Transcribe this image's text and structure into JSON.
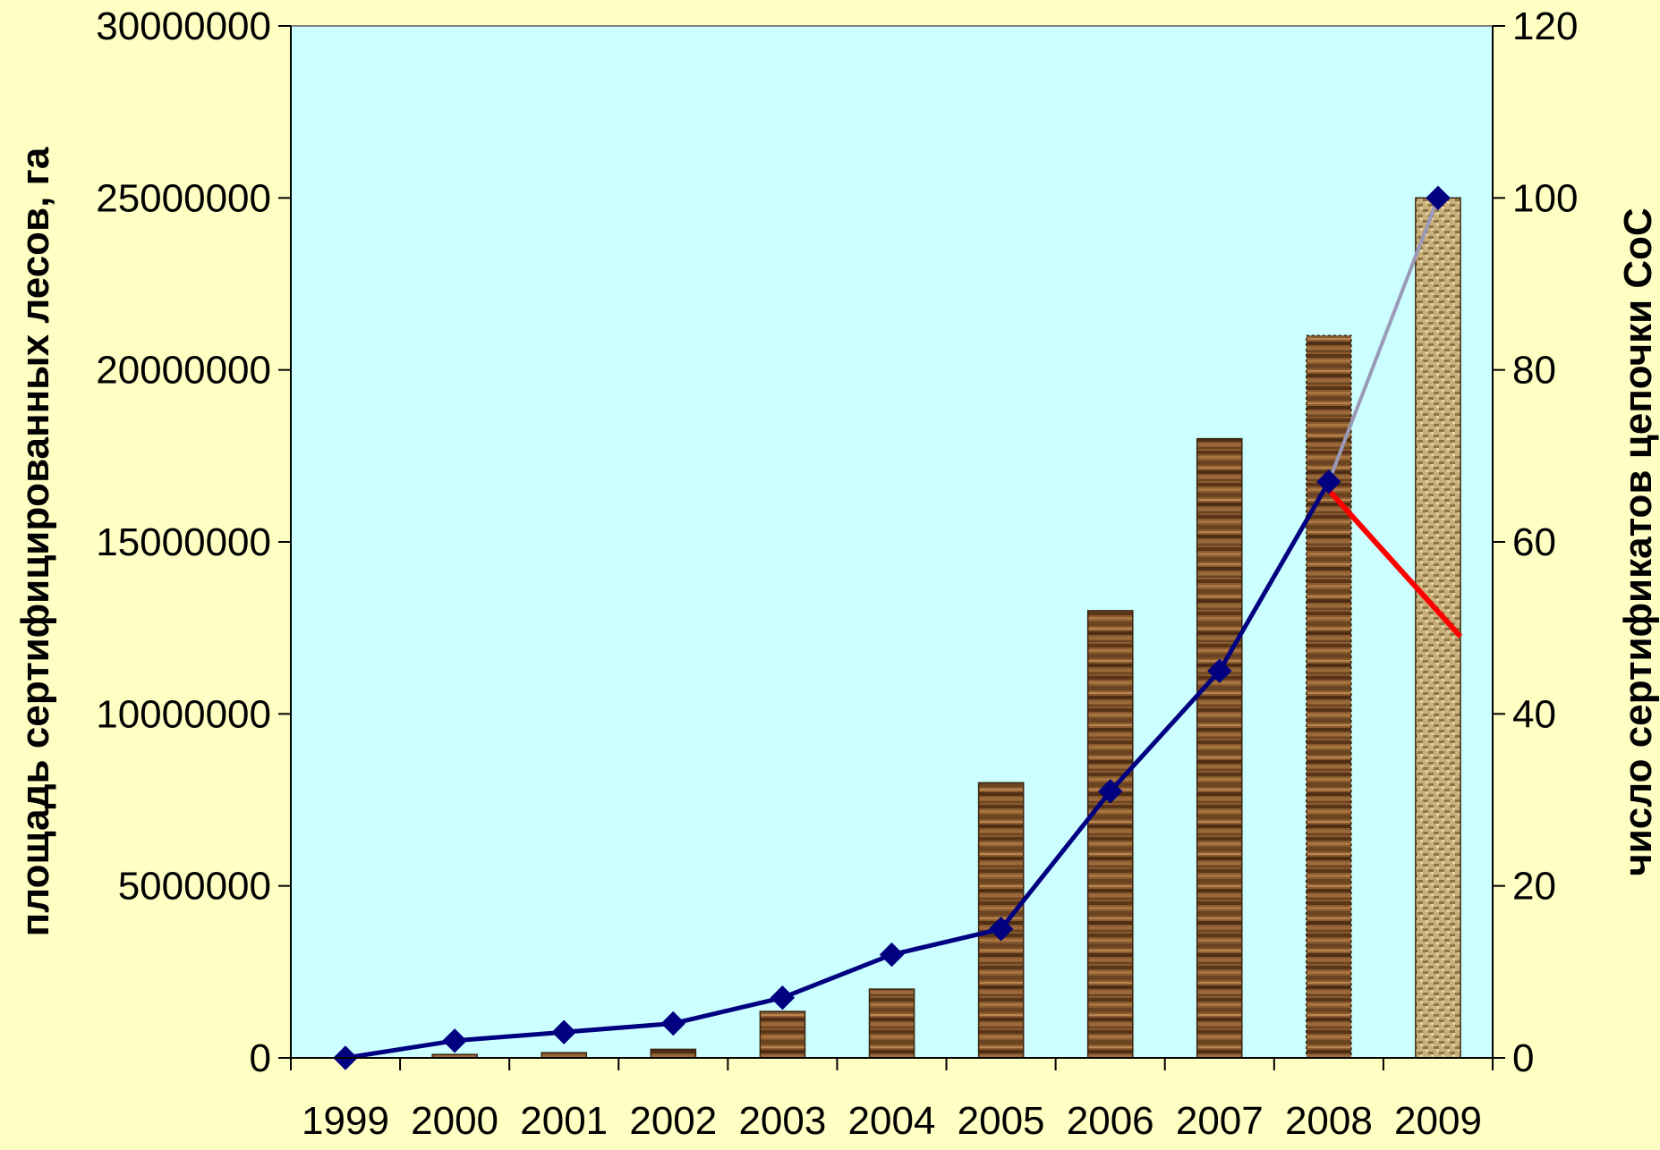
{
  "chart_data": {
    "type": "bar",
    "categories": [
      "1999",
      "2000",
      "2001",
      "2002",
      "2003",
      "2004",
      "2005",
      "2006",
      "2007",
      "2008",
      "2009"
    ],
    "series": [
      {
        "kind": "bar",
        "axis": "left",
        "values": [
          0,
          100000,
          150000,
          250000,
          1350000,
          2000000,
          8000000,
          13000000,
          18000000,
          21000000,
          25000000
        ]
      },
      {
        "kind": "line",
        "axis": "right",
        "values": [
          0,
          2,
          3,
          4,
          7,
          12,
          15,
          31,
          45,
          67,
          100
        ],
        "color": "#000080"
      },
      {
        "kind": "line",
        "axis": "right",
        "x": [
          "2008",
          "2009"
        ],
        "values": [
          66,
          49
        ],
        "color": "#ff0000"
      }
    ],
    "ylabel": "площадь сертифицированных лесов, га",
    "y2label": "число сертификатов цепочки CoC",
    "ylim": [
      0,
      30000000
    ],
    "y2lim": [
      0,
      120
    ],
    "yticks": [
      "0",
      "5000000",
      "10000000",
      "15000000",
      "20000000",
      "25000000",
      "30000000"
    ],
    "y2ticks": [
      "0",
      "20",
      "40",
      "60",
      "80",
      "100",
      "120"
    ],
    "grid": false,
    "legend": "none",
    "colors": {
      "background": "#ffffc4",
      "plot_area": "#ccffff",
      "bar_dark": "#6b4422",
      "bar_light": "#9b6a3c",
      "bar_pale": "#c9b07a",
      "line_main": "#000080",
      "line_projection": "#ff0000",
      "projection_segment": "#9a9ab8"
    }
  }
}
